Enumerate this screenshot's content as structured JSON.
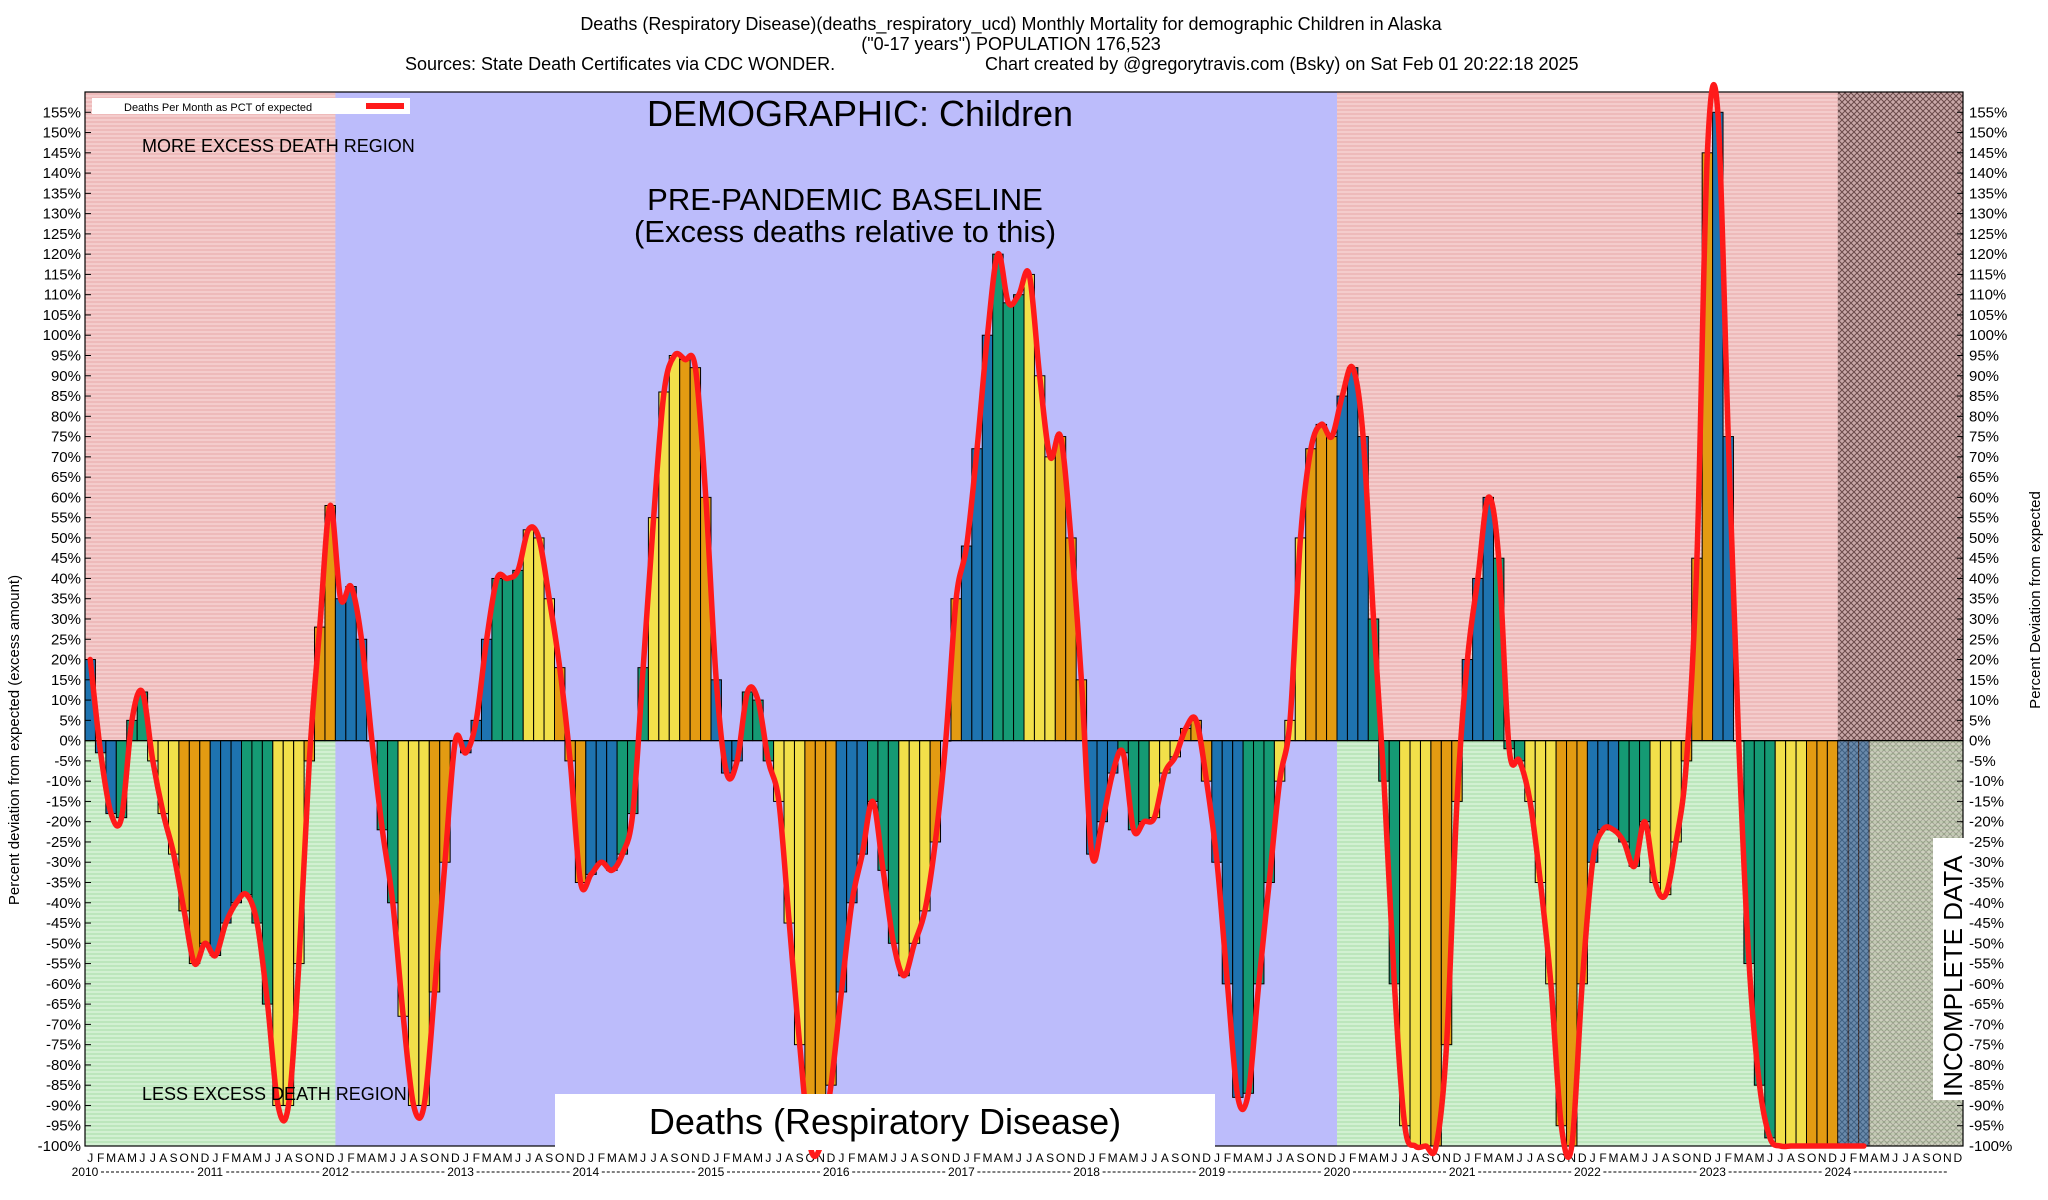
{
  "header": {
    "line1": "Deaths (Respiratory Disease)(deaths_respiratory_ucd) Monthly Mortality for demographic Children in Alaska",
    "line2": "(\"0-17 years\") POPULATION 176,523",
    "line3_left": "Sources: State Death Certificates via CDC WONDER.",
    "line3_right": "Chart created by @gregorytravis.com (Bsky) on Sat Feb 01 20:22:18 2025"
  },
  "labels": {
    "demographic": "DEMOGRAPHIC: Children",
    "baseline_line1": "PRE-PANDEMIC BASELINE",
    "baseline_line2": "(Excess deaths relative to this)",
    "more_excess": "MORE EXCESS DEATH REGION",
    "less_excess": "LESS EXCESS DEATH REGION",
    "incomplete": "INCOMPLETE DATA",
    "bottom_title": "Deaths (Respiratory Disease)",
    "legend": "Deaths Per Month as PCT of expected"
  },
  "colors": {
    "red_region": "#f2c4c4",
    "green_region": "#c8ecc8",
    "baseline_region": "#bcbcfb",
    "line": "#ff1a1a",
    "bar_blue": "#1e73b0",
    "bar_green": "#159a74",
    "bar_yellow": "#f2e04a",
    "bar_orange": "#e39b12"
  },
  "chart_data": {
    "type": "bar",
    "title": "Deaths (Respiratory Disease)(deaths_respiratory_ucd) Monthly Mortality for demographic Children in Alaska",
    "ylabel_left": "Percent deviation from expected (excess amount)",
    "ylabel_right": "Percent Deviation from expected",
    "ylim": [
      -100,
      160
    ],
    "y_tick_step": 5,
    "x_start": "2010-01",
    "x_end": "2024-12",
    "baseline_period": [
      "2012-01",
      "2019-12"
    ],
    "incomplete_period": [
      "2024-01",
      "2024-12"
    ],
    "month_letters": [
      "J",
      "F",
      "M",
      "A",
      "M",
      "J",
      "J",
      "A",
      "S",
      "O",
      "N",
      "D"
    ],
    "years": [
      "2010",
      "2011",
      "2012",
      "2013",
      "2014",
      "2015",
      "2016",
      "2017",
      "2018",
      "2019",
      "2020",
      "2021",
      "2022",
      "2023",
      "2024"
    ],
    "series": [
      {
        "name": "Deaths Per Month as PCT of expected",
        "values": [
          20,
          -3,
          -18,
          -19,
          5,
          12,
          -5,
          -18,
          -28,
          -42,
          -55,
          -50,
          -53,
          -45,
          -40,
          -38,
          -45,
          -65,
          -90,
          -90,
          -55,
          -5,
          28,
          58,
          35,
          38,
          25,
          0,
          -22,
          -40,
          -68,
          -90,
          -90,
          -62,
          -30,
          0,
          -3,
          5,
          25,
          40,
          40,
          42,
          52,
          50,
          35,
          18,
          -5,
          -35,
          -33,
          -30,
          -32,
          -28,
          -18,
          18,
          55,
          86,
          95,
          94,
          92,
          60,
          15,
          -8,
          -5,
          12,
          10,
          -5,
          -15,
          -45,
          -75,
          -100,
          -100,
          -85,
          -62,
          -40,
          -28,
          -15,
          -32,
          -50,
          -58,
          -50,
          -42,
          -25,
          0,
          35,
          48,
          72,
          100,
          120,
          108,
          110,
          115,
          90,
          70,
          75,
          50,
          15,
          -28,
          -20,
          -8,
          -3,
          -22,
          -20,
          -19,
          -8,
          -4,
          3,
          5,
          -10,
          -30,
          -60,
          -88,
          -87,
          -60,
          -35,
          -10,
          5,
          50,
          72,
          78,
          75,
          85,
          92,
          75,
          30,
          -10,
          -60,
          -95,
          -100,
          -100,
          -100,
          -75,
          -15,
          20,
          40,
          60,
          45,
          -2,
          -5,
          -15,
          -35,
          -60,
          -95,
          -100,
          -60,
          -30,
          -22,
          -22,
          -25,
          -31,
          -20,
          -35,
          -38,
          -25,
          -5,
          45,
          145,
          155,
          75,
          0,
          -55,
          -85,
          -98,
          -100,
          -100,
          -100,
          -100,
          -100,
          -100,
          -100,
          -100,
          -100
        ]
      }
    ]
  }
}
